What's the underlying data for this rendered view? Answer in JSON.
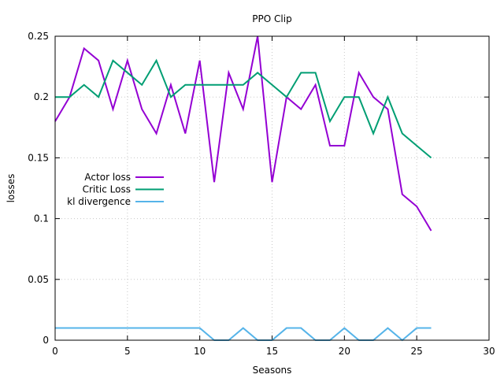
{
  "chart_data": {
    "type": "line",
    "title": "PPO Clip",
    "xlabel": "Seasons",
    "ylabel": "losses",
    "xlim": [
      0,
      30
    ],
    "ylim": [
      0,
      0.25
    ],
    "xticks": [
      0,
      5,
      10,
      15,
      20,
      25,
      30
    ],
    "yticks": [
      0,
      0.05,
      0.1,
      0.15,
      0.2,
      0.25
    ],
    "xtick_labels": [
      "0",
      "5",
      "10",
      "15",
      "20",
      "25",
      "30"
    ],
    "ytick_labels": [
      "0",
      "0.05",
      "0.1",
      "0.15",
      "0.2",
      "0.25"
    ],
    "grid": true,
    "legend_position": "left-middle",
    "x": [
      0,
      1,
      2,
      3,
      4,
      5,
      6,
      7,
      8,
      9,
      10,
      11,
      12,
      13,
      14,
      15,
      16,
      17,
      18,
      19,
      20,
      21,
      22,
      23,
      24,
      25,
      26
    ],
    "series": [
      {
        "name": "Actor loss",
        "color": "#9400d3",
        "values": [
          0.18,
          0.2,
          0.24,
          0.23,
          0.19,
          0.23,
          0.19,
          0.17,
          0.21,
          0.17,
          0.23,
          0.13,
          0.22,
          0.19,
          0.25,
          0.13,
          0.2,
          0.19,
          0.21,
          0.16,
          0.16,
          0.22,
          0.2,
          0.19,
          0.12,
          0.11,
          0.09
        ]
      },
      {
        "name": "Critic Loss",
        "color": "#009e73",
        "values": [
          0.2,
          0.2,
          0.21,
          0.2,
          0.23,
          0.22,
          0.21,
          0.23,
          0.2,
          0.21,
          0.21,
          0.21,
          0.21,
          0.21,
          0.22,
          0.21,
          0.2,
          0.22,
          0.22,
          0.18,
          0.2,
          0.2,
          0.17,
          0.2,
          0.17,
          0.16,
          0.15
        ]
      },
      {
        "name": "kl divergence",
        "color": "#56b4e9",
        "values": [
          0.01,
          0.01,
          0.01,
          0.01,
          0.01,
          0.01,
          0.01,
          0.01,
          0.01,
          0.01,
          0.01,
          0.0,
          0.0,
          0.01,
          0.0,
          0.0,
          0.01,
          0.01,
          0.0,
          0.0,
          0.01,
          0.0,
          0.0,
          0.01,
          0.0,
          0.01,
          0.01
        ]
      }
    ]
  }
}
